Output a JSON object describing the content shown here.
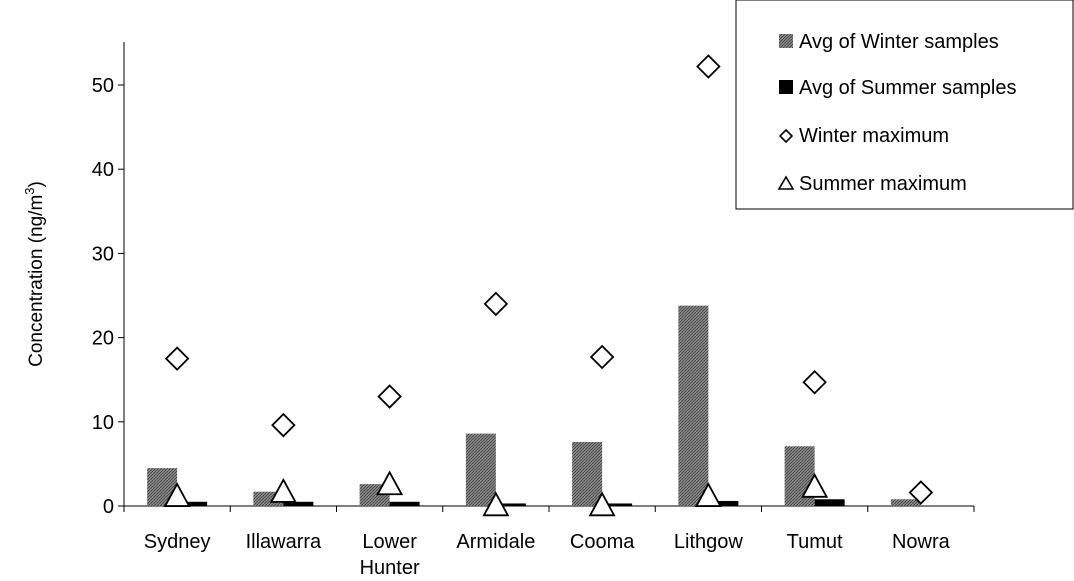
{
  "chart_data": {
    "type": "bar",
    "title": "",
    "xlabel": "",
    "ylabel": "Concentration (ng/m",
    "ylabel_superscript": "3",
    "ylabel_close": ")",
    "ylim": [
      0,
      55
    ],
    "yticks": [
      0,
      10,
      20,
      30,
      40,
      50
    ],
    "categories": [
      [
        "Sydney"
      ],
      [
        "Illawarra"
      ],
      [
        "Lower",
        "Hunter"
      ],
      [
        "Armidale"
      ],
      [
        "Cooma"
      ],
      [
        "Lithgow"
      ],
      [
        "Tumut"
      ],
      [
        "Nowra"
      ]
    ],
    "series": [
      {
        "name": "Avg of Winter samples",
        "kind": "bar",
        "style": "hatched-gray",
        "values": [
          4.5,
          1.7,
          2.6,
          8.6,
          7.6,
          23.8,
          7.1,
          0.8
        ]
      },
      {
        "name": "Avg of Summer samples",
        "kind": "bar",
        "style": "solid-black",
        "values": [
          0.5,
          0.5,
          0.5,
          0.3,
          0.3,
          0.6,
          0.8,
          null
        ]
      },
      {
        "name": "Winter maximum",
        "kind": "marker",
        "marker": "diamond",
        "values": [
          17.5,
          9.6,
          13.0,
          24.0,
          17.7,
          52.2,
          14.7,
          1.6
        ]
      },
      {
        "name": "Summer maximum",
        "kind": "marker",
        "marker": "triangle",
        "values": [
          1.3,
          1.8,
          2.7,
          0.2,
          0.2,
          1.3,
          2.4,
          null
        ]
      }
    ],
    "legend_position": "top-right",
    "grid": false
  }
}
